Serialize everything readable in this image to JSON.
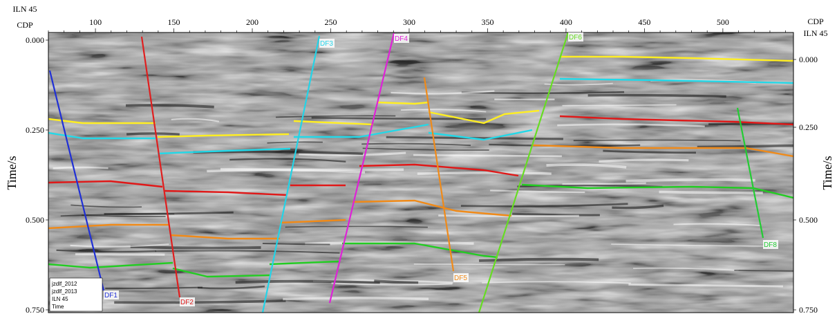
{
  "header": {
    "left_line1": "ILN 45",
    "left_line2": "CDP",
    "right_line1": "ILN 45",
    "right_line2": "CDP"
  },
  "axes": {
    "y_label": "Time/s",
    "x_range": [
      70,
      545
    ],
    "y_range": [
      0.0,
      0.75
    ],
    "x_ticks": [
      "100",
      "150",
      "200",
      "250",
      "300",
      "350",
      "400",
      "450",
      "500"
    ],
    "left_ticks": [
      "0.000",
      "0.250",
      "0.500",
      "0.750"
    ],
    "right_ticks": [
      "0.000",
      "0.250",
      "0.500",
      "0.750"
    ]
  },
  "legend": {
    "lines": [
      "jzdlf_2012",
      "jzdlf_2013",
      "ILN 45",
      "Time"
    ]
  },
  "faults": [
    {
      "label": "DF1",
      "color": "#1f2fd6"
    },
    {
      "label": "DF2",
      "color": "#e01e1e"
    },
    {
      "label": "DF3",
      "color": "#22d4e8"
    },
    {
      "label": "DF4",
      "color": "#e020d8"
    },
    {
      "label": "DF5",
      "color": "#f08a18"
    },
    {
      "label": "DF6",
      "color": "#66dd22"
    },
    {
      "label": "DF8",
      "color": "#22cc33"
    }
  ],
  "horizon_colors": {
    "yellow": "#ffee22",
    "cyan": "#22d8e8",
    "red": "#e01818",
    "orange": "#f08a18",
    "green": "#22cc22"
  }
}
